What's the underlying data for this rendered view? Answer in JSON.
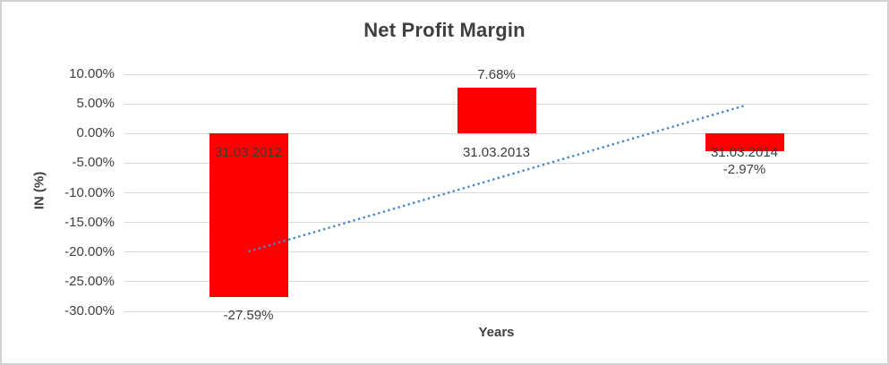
{
  "chart_data": {
    "type": "bar",
    "title": "Net Profit Margin",
    "xlabel": "Years",
    "ylabel": "IN (%)",
    "categories": [
      "31.03.2012",
      "31.03.2013",
      "31.03.2014"
    ],
    "values": [
      -27.59,
      7.68,
      -2.97
    ],
    "data_labels": [
      "-27.59%",
      "7.68%",
      "-2.97%"
    ],
    "ylim": [
      -30,
      10
    ],
    "yticks": [
      {
        "value": 10,
        "label": "10.00%"
      },
      {
        "value": 5,
        "label": "5.00%"
      },
      {
        "value": 0,
        "label": "0.00%"
      },
      {
        "value": -5,
        "label": "-5.00%"
      },
      {
        "value": -10,
        "label": "-10.00%"
      },
      {
        "value": -15,
        "label": "-15.00%"
      },
      {
        "value": -20,
        "label": "-20.00%"
      },
      {
        "value": -25,
        "label": "-25.00%"
      },
      {
        "value": -30,
        "label": "-30.00%"
      }
    ],
    "grid": true,
    "legend": "none",
    "bar_color": "#ff0000",
    "label_color": "#404040",
    "gridline_color": "#d9d9d9",
    "trendline": {
      "type": "linear",
      "style": "dotted",
      "color": "#4b86c5",
      "start_value": -19.9,
      "end_value": 4.7
    }
  }
}
